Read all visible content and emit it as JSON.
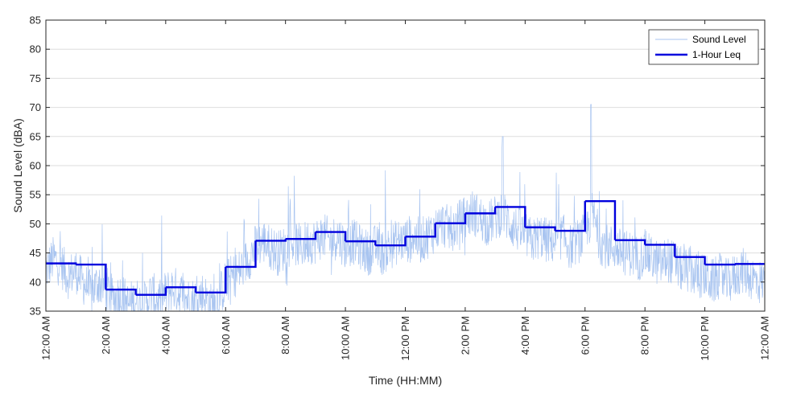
{
  "chart_data": {
    "type": "line",
    "title": "",
    "xlabel": "Time (HH:MM)",
    "ylabel": "Sound Level (dBA)",
    "ylim": [
      35,
      85
    ],
    "yticks": [
      35,
      40,
      45,
      50,
      55,
      60,
      65,
      70,
      75,
      80,
      85
    ],
    "xlim_hours": [
      0,
      24
    ],
    "xticks": [
      {
        "hour": 0,
        "label": "12:00 AM"
      },
      {
        "hour": 2,
        "label": "2:00 AM"
      },
      {
        "hour": 4,
        "label": "4:00 AM"
      },
      {
        "hour": 6,
        "label": "6:00 AM"
      },
      {
        "hour": 8,
        "label": "8:00 AM"
      },
      {
        "hour": 10,
        "label": "10:00 AM"
      },
      {
        "hour": 12,
        "label": "12:00 PM"
      },
      {
        "hour": 14,
        "label": "2:00 PM"
      },
      {
        "hour": 16,
        "label": "4:00 PM"
      },
      {
        "hour": 18,
        "label": "6:00 PM"
      },
      {
        "hour": 20,
        "label": "8:00 PM"
      },
      {
        "hour": 22,
        "label": "10:00 PM"
      },
      {
        "hour": 24,
        "label": "12:00 AM"
      }
    ],
    "grid": "y-major",
    "legend_position": "top-right",
    "series": [
      {
        "name": "Sound Level",
        "style": "thin-noisy-line",
        "color": "#a8c4f0",
        "x": [
          0.0,
          0.25,
          0.5,
          0.75,
          1.0,
          1.25,
          1.5,
          1.75,
          2.0,
          2.25,
          2.5,
          2.75,
          3.0,
          3.25,
          3.5,
          3.75,
          4.0,
          4.25,
          4.5,
          4.75,
          5.0,
          5.25,
          5.5,
          5.75,
          6.0,
          6.25,
          6.5,
          6.75,
          7.0,
          7.25,
          7.5,
          7.75,
          8.0,
          8.25,
          8.5,
          8.75,
          9.0,
          9.25,
          9.5,
          9.75,
          10.0,
          10.25,
          10.5,
          10.75,
          11.0,
          11.25,
          11.5,
          11.75,
          12.0,
          12.25,
          12.5,
          12.75,
          13.0,
          13.25,
          13.5,
          13.75,
          14.0,
          14.25,
          14.5,
          14.75,
          15.0,
          15.25,
          15.5,
          15.75,
          16.0,
          16.25,
          16.5,
          16.75,
          17.0,
          17.25,
          17.5,
          17.75,
          18.0,
          18.25,
          18.5,
          18.75,
          19.0,
          19.25,
          19.5,
          19.75,
          20.0,
          20.25,
          20.5,
          20.75,
          21.0,
          21.25,
          21.5,
          21.75,
          22.0,
          22.25,
          22.5,
          22.75,
          23.0,
          23.25,
          23.5,
          23.75,
          24.0
        ],
        "y": [
          42,
          44,
          43,
          41,
          42,
          40,
          38,
          40,
          39,
          37,
          38,
          36,
          37,
          36,
          38,
          37,
          38,
          39,
          38,
          37,
          37,
          38,
          36,
          37,
          40,
          41,
          42,
          44,
          46,
          47,
          46,
          45,
          46,
          47,
          46,
          47,
          47,
          48,
          47,
          48,
          46,
          47,
          46,
          45,
          46,
          45,
          46,
          47,
          47,
          48,
          47,
          48,
          49,
          50,
          49,
          50,
          51,
          52,
          51,
          50,
          51,
          52,
          50,
          49,
          48,
          47,
          48,
          47,
          47,
          48,
          46,
          47,
          48,
          52,
          47,
          46,
          46,
          45,
          45,
          44,
          45,
          44,
          43,
          44,
          43,
          42,
          42,
          41,
          41,
          40,
          41,
          40,
          41,
          42,
          41,
          40,
          40
        ]
      },
      {
        "name": "1-Hour Leq",
        "style": "step",
        "color": "#0000dd",
        "hour_starts": [
          0,
          1,
          2,
          3,
          4,
          5,
          6,
          7,
          8,
          9,
          10,
          11,
          12,
          13,
          14,
          15,
          16,
          17,
          18,
          19,
          20,
          21,
          22,
          23
        ],
        "values": [
          43.2,
          43.0,
          38.7,
          37.8,
          39.1,
          38.2,
          42.6,
          47.1,
          47.4,
          48.6,
          47.0,
          46.3,
          47.8,
          50.1,
          51.8,
          52.9,
          49.4,
          48.8,
          53.9,
          47.2,
          46.4,
          44.3,
          43.0,
          43.1
        ]
      }
    ]
  }
}
